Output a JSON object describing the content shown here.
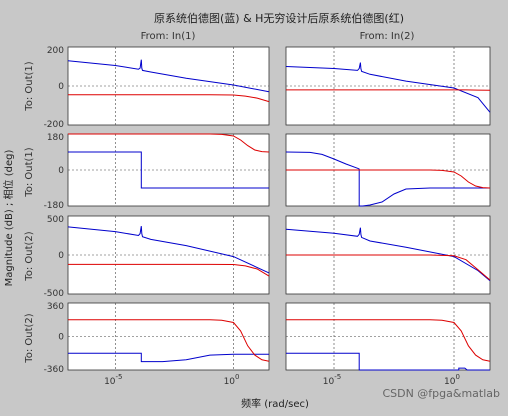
{
  "title": "原系统伯德图(蓝) & H无穷设计后原系统伯德图(红)",
  "xlabel": "频率 (rad/sec)",
  "ylabel": "Magnitude (dB) ; 相位 (deg)",
  "watermark": "CSDN @fpga&matlab",
  "col_labels": [
    "From: In(1)",
    "From: In(2)"
  ],
  "row_labels": [
    "To: Out(1)",
    "To: Out(1)",
    "To: Out(2)",
    "To: Out(2)"
  ],
  "y_ticks": [
    [
      "200",
      "0",
      "-200"
    ],
    [
      "180",
      "0",
      "-180"
    ],
    [
      "500",
      "0",
      "-500"
    ],
    [
      "360",
      "0",
      "-360"
    ]
  ],
  "x_ticks": [
    {
      "base": "10",
      "exp": "-5"
    },
    {
      "base": "10",
      "exp": "0"
    }
  ],
  "colors": {
    "original": "#0000cc",
    "hinf": "#dd0000",
    "grid": "#444444",
    "panel": "#ffffff"
  },
  "chart_data": {
    "type": "line",
    "x_scale": "log",
    "xlim": [
      -7,
      1.5
    ],
    "grid": true,
    "panels": [
      {
        "row": 0,
        "col": 0,
        "ylim": [
          -200,
          200
        ],
        "yticks": [
          200,
          0,
          -200
        ],
        "series": [
          {
            "color": "original",
            "x": [
              -7,
              -5,
              -4.02,
              -3.95,
              -3.9,
              -3.88,
              -3.85,
              -3.5,
              -2,
              0,
              1.5
            ],
            "y": [
              130,
              105,
              86,
              92,
              135,
              92,
              80,
              72,
              40,
              5,
              -30
            ]
          },
          {
            "color": "hinf",
            "x": [
              -7,
              -2,
              -1,
              0,
              0.5,
              1,
              1.5
            ],
            "y": [
              -45,
              -45,
              -45,
              -46,
              -52,
              -62,
              -80
            ]
          }
        ]
      },
      {
        "row": 0,
        "col": 1,
        "ylim": [
          -200,
          200
        ],
        "yticks": [
          200,
          0,
          -200
        ],
        "series": [
          {
            "color": "original",
            "x": [
              -7,
              -5,
              -4.02,
              -3.95,
              -3.9,
              -3.88,
              -3.85,
              -3.5,
              -2,
              0,
              1,
              1.5
            ],
            "y": [
              100,
              90,
              80,
              90,
              120,
              90,
              75,
              60,
              25,
              -10,
              -60,
              -135
            ]
          },
          {
            "color": "hinf",
            "x": [
              -7,
              -1,
              0,
              0.5,
              1,
              1.5
            ],
            "y": [
              -20,
              -20,
              -20,
              -20,
              -21,
              -22
            ]
          }
        ]
      },
      {
        "row": 1,
        "col": 0,
        "ylim": [
          -180,
          180
        ],
        "yticks": [
          180,
          0,
          -180
        ],
        "series": [
          {
            "color": "original",
            "x": [
              -7,
              -4.2,
              -3.9,
              -3.9,
              1.5
            ],
            "y": [
              90,
              90,
              90,
              -90,
              -90
            ]
          },
          {
            "color": "hinf",
            "x": [
              -7,
              -1,
              -0.5,
              0,
              0.3,
              0.6,
              0.9,
              1.2,
              1.5
            ],
            "y": [
              180,
              180,
              178,
              170,
              150,
              122,
              100,
              92,
              90
            ]
          }
        ]
      },
      {
        "row": 1,
        "col": 1,
        "ylim": [
          -180,
          180
        ],
        "yticks": [
          180,
          0,
          -180
        ],
        "series": [
          {
            "color": "original",
            "x": [
              -7,
              -6,
              -5.5,
              -5,
              -4.5,
              -4,
              -3.95,
              -3.95,
              -3.8,
              -3.5,
              -3,
              -2.5,
              -2,
              -1,
              0,
              0.5,
              1,
              1.5
            ],
            "y": [
              90,
              88,
              78,
              55,
              30,
              8,
              5,
              -180,
              -180,
              -175,
              -160,
              -120,
              -95,
              -90,
              -90,
              -90,
              -90,
              -90
            ]
          },
          {
            "color": "hinf",
            "x": [
              -7,
              -1,
              -0.5,
              0,
              0.3,
              0.6,
              0.9,
              1.2,
              1.5
            ],
            "y": [
              0,
              0,
              -2,
              -10,
              -30,
              -60,
              -80,
              -88,
              -90
            ]
          }
        ]
      },
      {
        "row": 2,
        "col": 0,
        "ylim": [
          -500,
          500
        ],
        "yticks": [
          500,
          0,
          -500
        ],
        "series": [
          {
            "color": "original",
            "x": [
              -7,
              -5,
              -4.02,
              -3.95,
              -3.9,
              -3.88,
              -3.85,
              -3.5,
              -2,
              0,
              1.5
            ],
            "y": [
              360,
              300,
              250,
              275,
              370,
              275,
              235,
              200,
              120,
              -20,
              -230
            ]
          },
          {
            "color": "hinf",
            "x": [
              -7,
              -2,
              -1,
              0,
              0.5,
              1,
              1.5
            ],
            "y": [
              -120,
              -120,
              -120,
              -122,
              -140,
              -180,
              -270
            ]
          }
        ]
      },
      {
        "row": 2,
        "col": 1,
        "ylim": [
          -500,
          500
        ],
        "yticks": [
          500,
          0,
          -500
        ],
        "series": [
          {
            "color": "original",
            "x": [
              -7,
              -5,
              -4.02,
              -3.95,
              -3.9,
              -3.88,
              -3.85,
              -3.5,
              -2,
              0,
              1,
              1.5
            ],
            "y": [
              330,
              280,
              240,
              265,
              350,
              265,
              225,
              180,
              100,
              -20,
              -200,
              -330
            ]
          },
          {
            "color": "hinf",
            "x": [
              -7,
              -1,
              0,
              0.5,
              1,
              1.5
            ],
            "y": [
              0,
              0,
              -10,
              -60,
              -190,
              -320
            ]
          }
        ]
      },
      {
        "row": 3,
        "col": 0,
        "ylim": [
          -360,
          360
        ],
        "yticks": [
          360,
          0,
          -360
        ],
        "series": [
          {
            "color": "original",
            "x": [
              -7,
              -3.9,
              -3.9,
              -3,
              -2,
              -1,
              0,
              1,
              1.5
            ],
            "y": [
              -180,
              -180,
              -270,
              -270,
              -250,
              -200,
              -190,
              -190,
              -190
            ]
          },
          {
            "color": "hinf",
            "x": [
              -7,
              -1,
              -0.5,
              0,
              0.3,
              0.6,
              0.9,
              1.2,
              1.5
            ],
            "y": [
              180,
              180,
              175,
              150,
              60,
              -100,
              -200,
              -250,
              -265
            ]
          }
        ]
      },
      {
        "row": 3,
        "col": 1,
        "ylim": [
          -360,
          360
        ],
        "yticks": [
          360,
          0,
          -360
        ],
        "series": [
          {
            "color": "original",
            "x": [
              -7,
              -4,
              -3.95,
              -3.95,
              0.2,
              0.2,
              0.45,
              0.55,
              0.6,
              0.6,
              1.5
            ],
            "y": [
              -180,
              -180,
              -180,
              -360,
              -360,
              -340,
              -340,
              -360,
              -360,
              -360,
              -360
            ]
          },
          {
            "color": "hinf",
            "x": [
              -7,
              -1,
              -0.5,
              0,
              0.3,
              0.6,
              0.9,
              1.2,
              1.5
            ],
            "y": [
              180,
              180,
              175,
              150,
              60,
              -100,
              -200,
              -250,
              -265
            ]
          }
        ]
      }
    ]
  }
}
